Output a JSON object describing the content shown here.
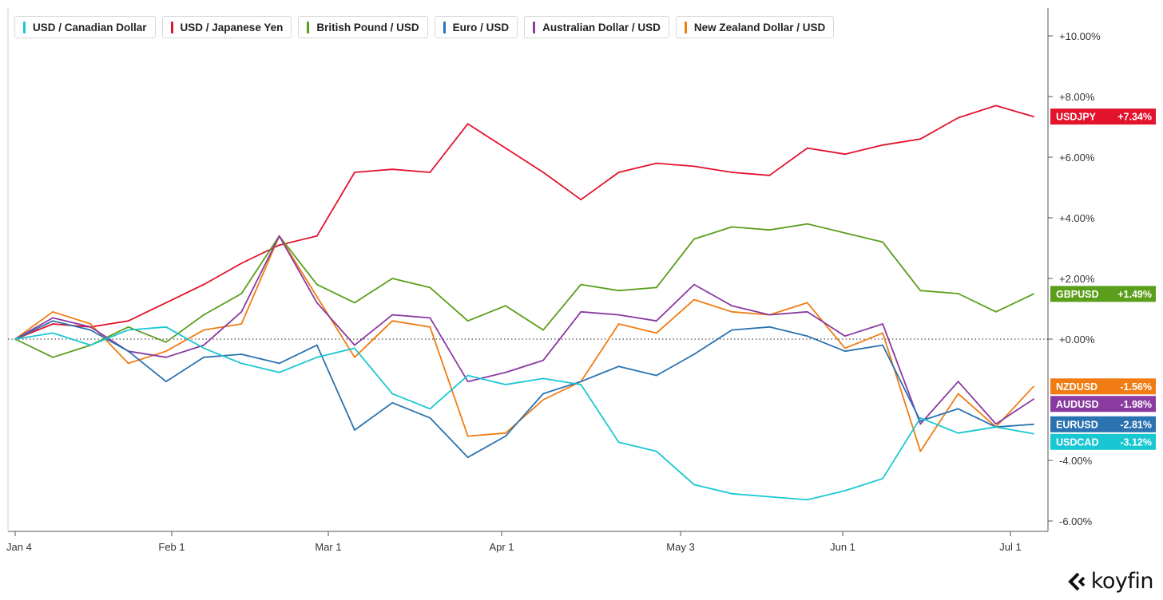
{
  "brand": {
    "name": "koyfin"
  },
  "colors": {
    "USDCAD": "#19c7d3",
    "USDJPY": "#e3122d",
    "GBPUSD": "#5a9e1b",
    "EURUSD": "#2a72b0",
    "AUDUSD": "#8a3aa0",
    "NZDUSD": "#f07c13"
  },
  "legend": [
    {
      "key": "USDCAD",
      "label": "USD / Canadian Dollar"
    },
    {
      "key": "USDJPY",
      "label": "USD / Japanese Yen"
    },
    {
      "key": "GBPUSD",
      "label": "British Pound / USD"
    },
    {
      "key": "EURUSD",
      "label": "Euro / USD"
    },
    {
      "key": "AUDUSD",
      "label": "Australian Dollar / USD"
    },
    {
      "key": "NZDUSD",
      "label": "New Zealand Dollar / USD"
    }
  ],
  "chart_data": {
    "type": "line",
    "title": "",
    "xlabel": "",
    "ylabel": "",
    "x_axis": {
      "type": "date",
      "range": [
        "Jan 4",
        "Jul 7"
      ],
      "ticks": [
        {
          "label": "Jan 4",
          "day": 0
        },
        {
          "label": "Feb 1",
          "day": 28
        },
        {
          "label": "Mar 1",
          "day": 56
        },
        {
          "label": "Apr 1",
          "day": 87
        },
        {
          "label": "May 3",
          "day": 119
        },
        {
          "label": "Jun 1",
          "day": 148
        },
        {
          "label": "Jul 1",
          "day": 178
        }
      ]
    },
    "y_axis": {
      "unit": "%",
      "range": [
        -6.4,
        10.8
      ],
      "ticks": [
        "+10.00%",
        "+8.00%",
        "+6.00%",
        "+4.00%",
        "+2.00%",
        "+0.00%",
        "-4.00%",
        "-6.00%"
      ],
      "tick_values": [
        10,
        8,
        6,
        4,
        2,
        0,
        -4,
        -6
      ],
      "position": "right",
      "zero_line": "dotted"
    },
    "grid": false,
    "legend_position": "top-left",
    "x": [
      "Jan 4",
      "Jan 11",
      "Jan 18",
      "Jan 25",
      "Feb 1",
      "Feb 8",
      "Feb 15",
      "Feb 22",
      "Mar 1",
      "Mar 8",
      "Mar 15",
      "Mar 22",
      "Mar 29",
      "Apr 5",
      "Apr 12",
      "Apr 19",
      "Apr 26",
      "May 3",
      "May 10",
      "May 17",
      "May 24",
      "May 31",
      "Jun 7",
      "Jun 14",
      "Jun 21",
      "Jun 28",
      "Jul 5",
      "Jul 7"
    ],
    "series": [
      {
        "key": "USDJPY",
        "name": "USD / Japanese Yen",
        "badge": "USDJPY",
        "last": "+7.34%",
        "values": [
          0.0,
          0.5,
          0.4,
          0.6,
          1.2,
          1.8,
          2.5,
          3.1,
          3.4,
          5.5,
          5.6,
          5.5,
          7.1,
          6.3,
          5.5,
          4.6,
          5.5,
          5.8,
          5.7,
          5.5,
          5.4,
          6.3,
          6.1,
          6.4,
          6.6,
          7.3,
          7.7,
          7.34
        ]
      },
      {
        "key": "GBPUSD",
        "name": "British Pound / USD",
        "badge": "GBPUSD",
        "last": "+1.49%",
        "values": [
          0.0,
          -0.6,
          -0.2,
          0.4,
          -0.1,
          0.8,
          1.5,
          3.4,
          1.8,
          1.2,
          2.0,
          1.7,
          0.6,
          1.1,
          0.3,
          1.8,
          1.6,
          1.7,
          3.3,
          3.7,
          3.6,
          3.8,
          3.5,
          3.2,
          1.6,
          1.5,
          0.9,
          1.49
        ]
      },
      {
        "key": "NZDUSD",
        "name": "New Zealand Dollar / USD",
        "badge": "NZDUSD",
        "last": "-1.56%",
        "values": [
          0.0,
          0.9,
          0.5,
          -0.8,
          -0.4,
          0.3,
          0.5,
          3.4,
          1.4,
          -0.6,
          0.6,
          0.4,
          -3.2,
          -3.1,
          -2.0,
          -1.4,
          0.5,
          0.2,
          1.3,
          0.9,
          0.8,
          1.2,
          -0.3,
          0.2,
          -3.7,
          -1.8,
          -2.9,
          -1.56
        ]
      },
      {
        "key": "AUDUSD",
        "name": "Australian Dollar / USD",
        "badge": "AUDUSD",
        "last": "-1.98%",
        "values": [
          0.0,
          0.7,
          0.4,
          -0.4,
          -0.6,
          -0.2,
          0.9,
          3.4,
          1.2,
          -0.2,
          0.8,
          0.7,
          -1.4,
          -1.1,
          -0.7,
          0.9,
          0.8,
          0.6,
          1.8,
          1.1,
          0.8,
          0.9,
          0.1,
          0.5,
          -2.8,
          -1.4,
          -2.8,
          -1.98
        ]
      },
      {
        "key": "EURUSD",
        "name": "Euro / USD",
        "badge": "EURUSD",
        "last": "-2.81%",
        "values": [
          0.0,
          0.6,
          0.3,
          -0.4,
          -1.4,
          -0.6,
          -0.5,
          -0.8,
          -0.2,
          -3.0,
          -2.1,
          -2.6,
          -3.9,
          -3.2,
          -1.8,
          -1.4,
          -0.9,
          -1.2,
          -0.5,
          0.3,
          0.4,
          0.1,
          -0.4,
          -0.2,
          -2.7,
          -2.3,
          -2.9,
          -2.81
        ]
      },
      {
        "key": "USDCAD",
        "name": "USD / Canadian Dollar",
        "badge": "USDCAD",
        "last": "-3.12%",
        "values": [
          0.0,
          0.2,
          -0.2,
          0.3,
          0.4,
          -0.3,
          -0.8,
          -1.1,
          -0.6,
          -0.3,
          -1.8,
          -2.3,
          -1.2,
          -1.5,
          -1.3,
          -1.5,
          -3.4,
          -3.7,
          -4.8,
          -5.1,
          -5.2,
          -5.3,
          -5.0,
          -4.6,
          -2.6,
          -3.1,
          -2.9,
          -3.12
        ]
      }
    ]
  }
}
